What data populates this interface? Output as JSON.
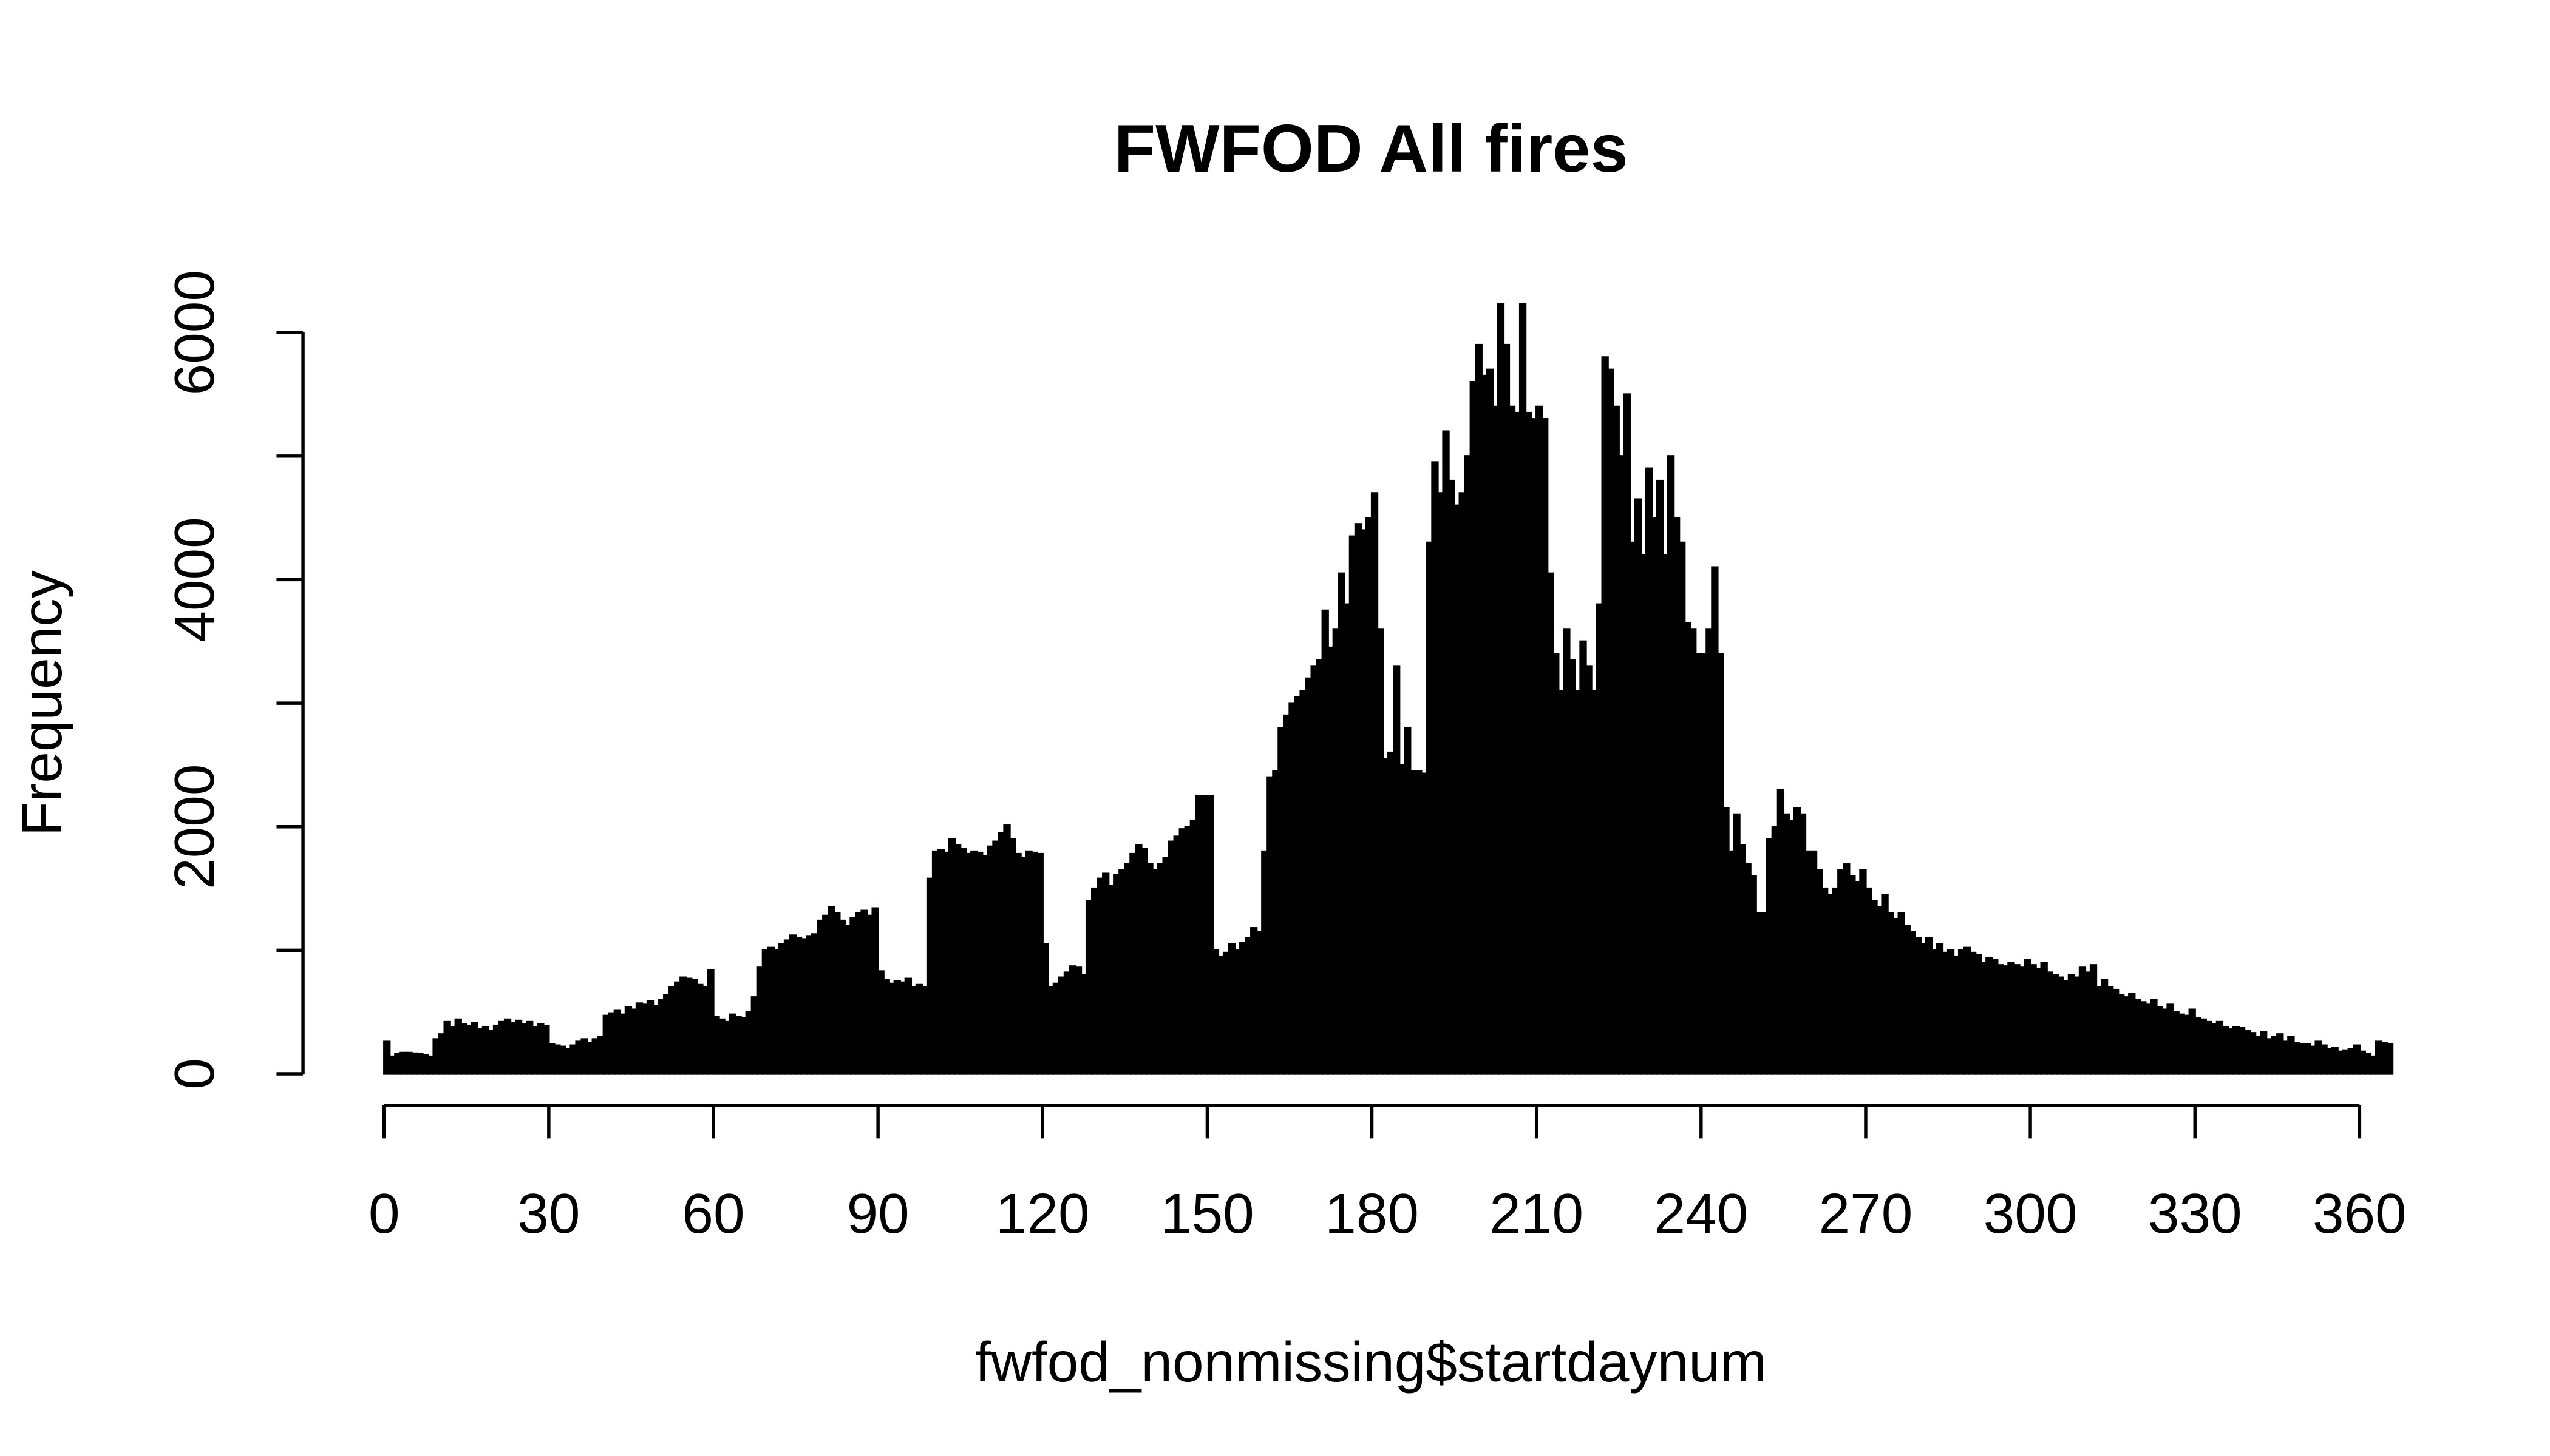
{
  "chart_data": {
    "type": "histogram",
    "title": "FWFOD All fires",
    "x_label": "fwfod_nonmissing$startdaynum",
    "y_label": "Frequency",
    "color": "#000000",
    "bins": [
      0,
      1,
      2,
      3,
      4,
      5,
      6,
      7,
      8,
      9,
      10,
      11,
      12,
      13,
      14,
      15,
      16,
      17,
      18,
      19,
      20,
      21,
      22,
      23,
      24,
      25,
      26,
      27,
      28,
      29,
      30,
      31,
      32,
      33,
      34,
      35,
      36,
      37,
      38,
      39,
      40,
      41,
      42,
      43,
      44,
      45,
      46,
      47,
      48,
      49,
      50,
      51,
      52,
      53,
      54,
      55,
      56,
      57,
      58,
      59,
      60,
      61,
      62,
      63,
      64,
      65,
      66,
      67,
      68,
      69,
      70,
      71,
      72,
      73,
      74,
      75,
      76,
      77,
      78,
      79,
      80,
      81,
      82,
      83,
      84,
      85,
      86,
      87,
      88,
      89,
      90,
      91,
      92,
      93,
      94,
      95,
      96,
      97,
      98,
      99,
      100,
      101,
      102,
      103,
      104,
      105,
      106,
      107,
      108,
      109,
      110,
      111,
      112,
      113,
      114,
      115,
      116,
      117,
      118,
      119,
      120,
      121,
      122,
      123,
      124,
      125,
      126,
      127,
      128,
      129,
      130,
      131,
      132,
      133,
      134,
      135,
      136,
      137,
      138,
      139,
      140,
      141,
      142,
      143,
      144,
      145,
      146,
      147,
      148,
      149,
      150,
      151,
      152,
      153,
      154,
      155,
      156,
      157,
      158,
      159,
      160,
      161,
      162,
      163,
      164,
      165,
      166,
      167,
      168,
      169,
      170,
      171,
      172,
      173,
      174,
      175,
      176,
      177,
      178,
      179,
      180,
      181,
      182,
      183,
      184,
      185,
      186,
      187,
      188,
      189,
      190,
      191,
      192,
      193,
      194,
      195,
      196,
      197,
      198,
      199,
      200,
      201,
      202,
      203,
      204,
      205,
      206,
      207,
      208,
      209,
      210,
      211,
      212,
      213,
      214,
      215,
      216,
      217,
      218,
      219,
      220,
      221,
      222,
      223,
      224,
      225,
      226,
      227,
      228,
      229,
      230,
      231,
      232,
      233,
      234,
      235,
      236,
      237,
      238,
      239,
      240,
      241,
      242,
      243,
      244,
      245,
      246,
      247,
      248,
      249,
      250,
      251,
      252,
      253,
      254,
      255,
      256,
      257,
      258,
      259,
      260,
      261,
      262,
      263,
      264,
      265,
      266,
      267,
      268,
      269,
      270,
      271,
      272,
      273,
      274,
      275,
      276,
      277,
      278,
      279,
      280,
      281,
      282,
      283,
      284,
      285,
      286,
      287,
      288,
      289,
      290,
      291,
      292,
      293,
      294,
      295,
      296,
      297,
      298,
      299,
      300,
      301,
      302,
      303,
      304,
      305,
      306,
      307,
      308,
      309,
      310,
      311,
      312,
      313,
      314,
      315,
      316,
      317,
      318,
      319,
      320,
      321,
      322,
      323,
      324,
      325,
      326,
      327,
      328,
      329,
      330,
      331,
      332,
      333,
      334,
      335,
      336,
      337,
      338,
      339,
      340,
      341,
      342,
      343,
      344,
      345,
      346,
      347,
      348,
      349,
      350,
      351,
      352,
      353,
      354,
      355,
      356,
      357,
      358,
      359,
      360,
      361,
      362,
      363,
      364,
      365,
      366
    ],
    "counts": [
      260,
      140,
      160,
      170,
      170,
      165,
      160,
      150,
      140,
      280,
      320,
      420,
      380,
      440,
      400,
      390,
      410,
      360,
      380,
      350,
      390,
      420,
      440,
      410,
      430,
      400,
      420,
      380,
      400,
      390,
      240,
      230,
      220,
      200,
      230,
      260,
      280,
      250,
      280,
      300,
      470,
      490,
      510,
      480,
      540,
      520,
      570,
      560,
      590,
      550,
      600,
      640,
      700,
      740,
      780,
      770,
      760,
      720,
      700,
      840,
      460,
      440,
      420,
      480,
      460,
      450,
      500,
      620,
      860,
      1000,
      1020,
      1000,
      1050,
      1080,
      1120,
      1100,
      1090,
      1110,
      1130,
      1240,
      1280,
      1350,
      1300,
      1240,
      1200,
      1260,
      1300,
      1320,
      1280,
      1340,
      830,
      760,
      730,
      750,
      740,
      770,
      700,
      720,
      700,
      1580,
      1800,
      1810,
      1790,
      1900,
      1850,
      1820,
      1780,
      1800,
      1790,
      1760,
      1840,
      1880,
      1950,
      2010,
      1900,
      1780,
      1750,
      1800,
      1790,
      1780,
      1050,
      700,
      730,
      780,
      820,
      870,
      860,
      800,
      1400,
      1500,
      1580,
      1620,
      1520,
      1610,
      1650,
      1700,
      1780,
      1850,
      1820,
      1700,
      1650,
      1700,
      1750,
      1880,
      1920,
      1980,
      2000,
      2050,
      2250,
      2250,
      2250,
      1000,
      950,
      980,
      1050,
      1000,
      1060,
      1100,
      1180,
      1150,
      1800,
      2400,
      2450,
      2800,
      2900,
      3000,
      3050,
      3100,
      3200,
      3300,
      3350,
      3750,
      3450,
      3600,
      4050,
      3800,
      4350,
      4450,
      4400,
      4500,
      4700,
      3600,
      2550,
      2600,
      3300,
      2500,
      2800,
      2450,
      2450,
      2430,
      4300,
      4950,
      4700,
      5200,
      4800,
      4600,
      4700,
      5000,
      5600,
      5900,
      5650,
      5700,
      5400,
      6230,
      5900,
      5400,
      5350,
      6230,
      5350,
      5300,
      5400,
      5300,
      4050,
      3400,
      3100,
      3600,
      3350,
      3100,
      3500,
      3300,
      3100,
      3800,
      5800,
      5700,
      5400,
      5000,
      5500,
      4300,
      4650,
      4200,
      4900,
      4500,
      4800,
      4200,
      5000,
      4500,
      4300,
      3650,
      3600,
      3400,
      3400,
      3600,
      4100,
      3400,
      2150,
      1800,
      2100,
      1850,
      1700,
      1600,
      1300,
      1300,
      1900,
      2000,
      2300,
      2100,
      2050,
      2150,
      2100,
      1800,
      1800,
      1650,
      1500,
      1450,
      1500,
      1650,
      1700,
      1600,
      1550,
      1650,
      1500,
      1400,
      1350,
      1450,
      1300,
      1250,
      1300,
      1200,
      1150,
      1100,
      1050,
      1100,
      1000,
      1050,
      980,
      1000,
      950,
      1000,
      1020,
      980,
      960,
      900,
      940,
      920,
      880,
      870,
      900,
      880,
      860,
      920,
      880,
      850,
      900,
      820,
      800,
      780,
      750,
      800,
      780,
      860,
      820,
      880,
      700,
      760,
      700,
      680,
      640,
      620,
      650,
      600,
      580,
      560,
      600,
      540,
      520,
      560,
      500,
      480,
      470,
      520,
      450,
      440,
      420,
      400,
      420,
      380,
      360,
      380,
      370,
      350,
      330,
      300,
      340,
      280,
      300,
      320,
      260,
      300,
      250,
      240,
      240,
      220,
      260,
      230,
      200,
      210,
      180,
      190,
      200,
      230,
      180,
      160,
      140,
      260,
      250,
      240
    ],
    "xlim": [
      0,
      366
    ],
    "xticks": [
      0,
      30,
      60,
      90,
      120,
      150,
      180,
      210,
      240,
      270,
      300,
      330,
      360
    ],
    "ylim": [
      0,
      6240
    ],
    "yticks": [
      0,
      2000,
      4000,
      6000
    ],
    "yminor_ticks": [
      1000,
      3000,
      5000
    ]
  }
}
